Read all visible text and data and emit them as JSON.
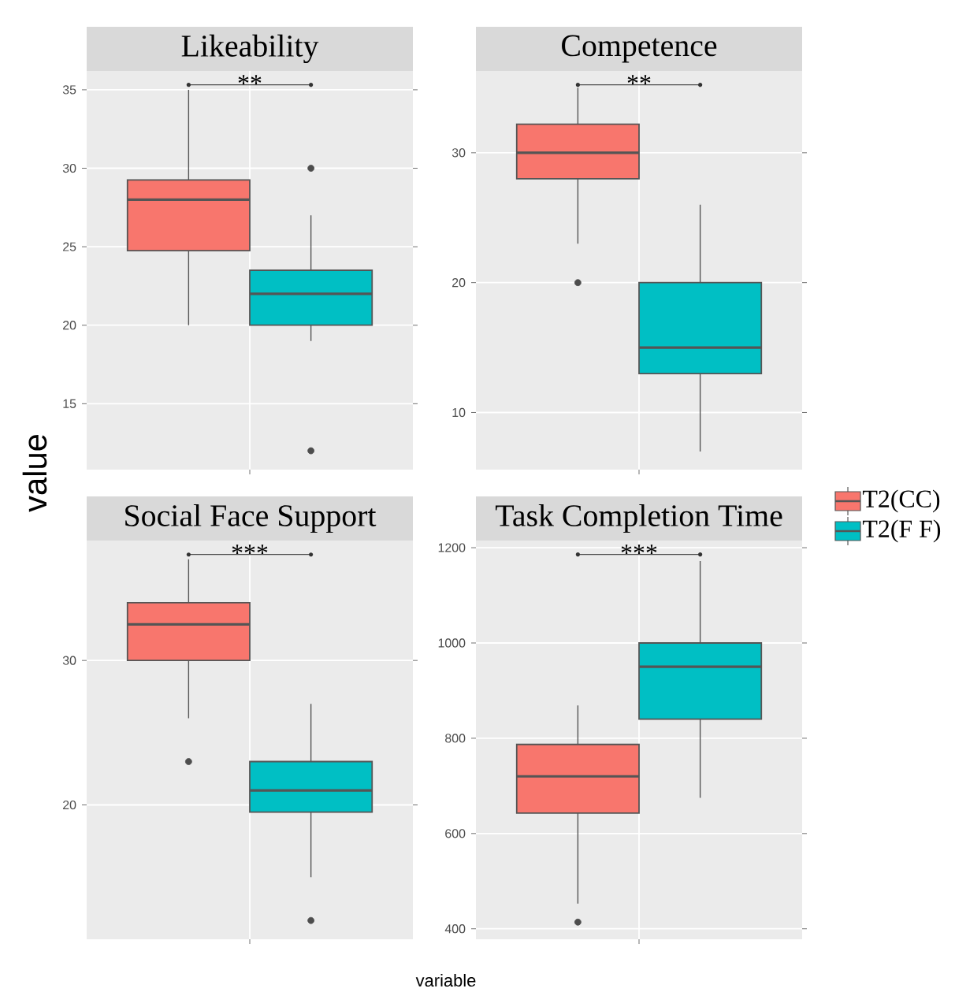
{
  "chart_data": [
    {
      "type": "box",
      "title": "Likeability",
      "ylabel": "value",
      "categories": [
        null
      ],
      "ylim": [
        10.8,
        36.2
      ],
      "yticks": [
        15,
        20,
        25,
        30,
        35
      ],
      "grid": true,
      "annotations": [
        "**"
      ],
      "series": [
        {
          "color": "#f8766d",
          "boxes": [
            {
              "low": 20,
              "q1": 24.75,
              "median": 28,
              "q3": 29.25,
              "high": 35
            }
          ]
        },
        {
          "color": "#00bfc4",
          "boxes": [
            {
              "low": 19,
              "q1": 20,
              "median": 22,
              "q3": 23.5,
              "high": 27,
              "outliers": [
                30,
                12
              ]
            }
          ]
        }
      ]
    },
    {
      "type": "box",
      "title": "Competence",
      "categories": [
        null
      ],
      "ylim": [
        5.6,
        36.3
      ],
      "yticks": [
        10,
        20,
        30
      ],
      "grid": true,
      "annotations": [
        "**"
      ],
      "series": [
        {
          "color": "#f8766d",
          "boxes": [
            {
              "low": 23,
              "q1": 28,
              "median": 30,
              "q3": 32.2,
              "high": 35,
              "outliers": [
                20
              ]
            }
          ]
        },
        {
          "color": "#00bfc4",
          "boxes": [
            {
              "low": 7,
              "q1": 13,
              "median": 15,
              "q3": 20,
              "high": 26
            }
          ]
        }
      ]
    },
    {
      "type": "box",
      "title": "Social Face Support",
      "xlabel": "variable",
      "categories": [
        null
      ],
      "ylim": [
        10.7,
        38.3
      ],
      "yticks": [
        20,
        30
      ],
      "grid": true,
      "annotations": [
        "***"
      ],
      "series": [
        {
          "color": "#f8766d",
          "boxes": [
            {
              "low": 26,
              "q1": 30,
              "median": 32.5,
              "q3": 34,
              "high": 37,
              "outliers": [
                23
              ]
            }
          ]
        },
        {
          "color": "#00bfc4",
          "boxes": [
            {
              "low": 15,
              "q1": 19.5,
              "median": 21,
              "q3": 23,
              "high": 27,
              "outliers": [
                12
              ]
            }
          ]
        }
      ]
    },
    {
      "type": "box",
      "title": "Task Completion Time",
      "categories": [
        null
      ],
      "ylim": [
        378,
        1215
      ],
      "yticks": [
        400,
        600,
        800,
        1000,
        1200
      ],
      "grid": true,
      "annotations": [
        "***"
      ],
      "legend": "right",
      "series": [
        {
          "name": "T2(CC)",
          "color": "#f8766d",
          "boxes": [
            {
              "low": 453,
              "q1": 643,
              "median": 720,
              "q3": 787,
              "high": 869,
              "outliers": [
                414
              ]
            }
          ]
        },
        {
          "name": "T2(F F)",
          "color": "#00bfc4",
          "boxes": [
            {
              "low": 675,
              "q1": 840,
              "median": 950,
              "q3": 1000,
              "high": 1172
            }
          ]
        }
      ]
    }
  ]
}
